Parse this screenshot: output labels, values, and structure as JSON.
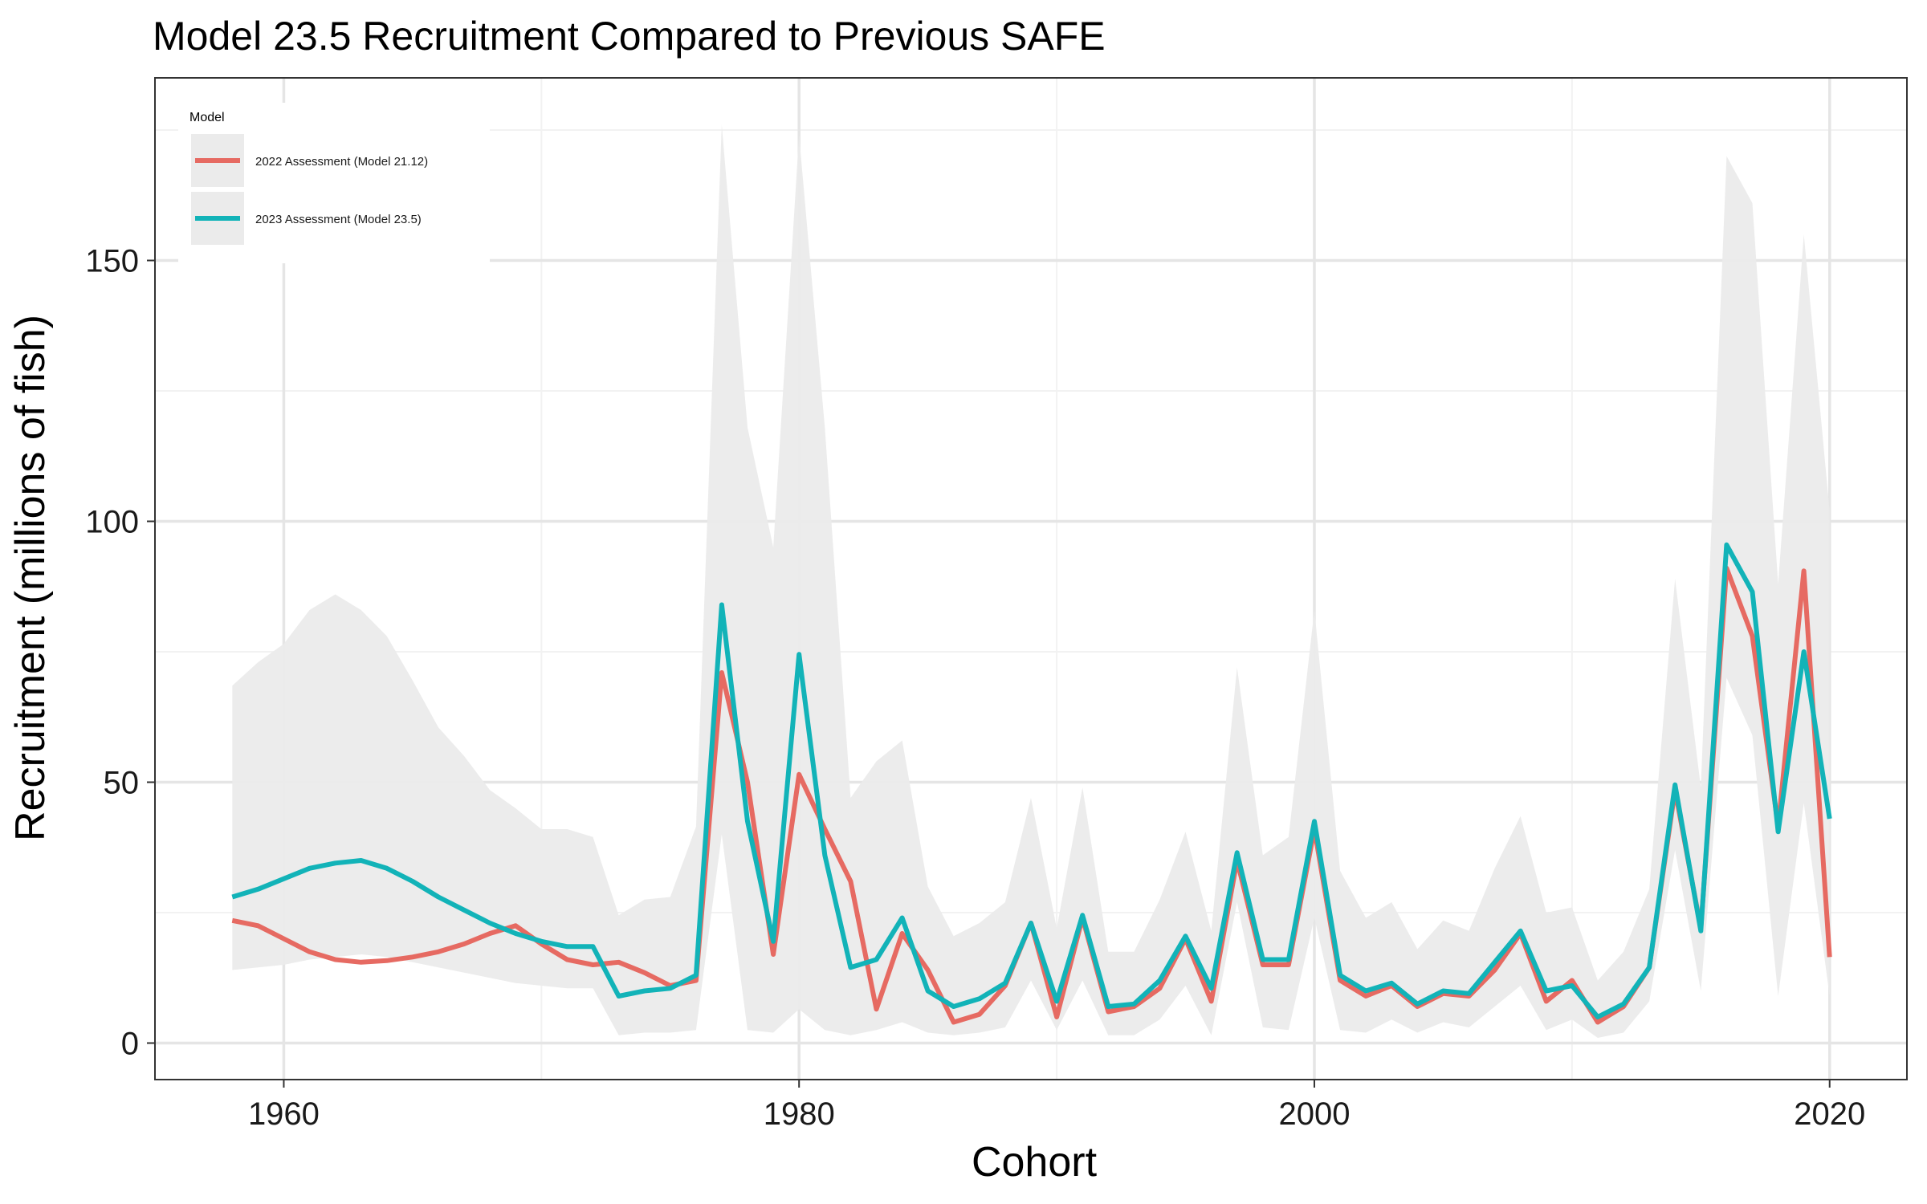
{
  "chart_data": {
    "type": "line",
    "title": "Model 23.5 Recruitment Compared to Previous SAFE",
    "xlabel": "Cohort",
    "ylabel": "Recruitment (millions of fish)",
    "xlim": [
      1955,
      2023
    ],
    "ylim": [
      -7,
      185
    ],
    "x_ticks": [
      "1960",
      "1980",
      "2000",
      "2020"
    ],
    "y_ticks": [
      "0",
      "50",
      "100",
      "150"
    ],
    "grid": true,
    "legend": {
      "title": "Model",
      "position": "top-left"
    },
    "x": [
      1958,
      1959,
      1960,
      1961,
      1962,
      1963,
      1964,
      1965,
      1966,
      1967,
      1968,
      1969,
      1970,
      1971,
      1972,
      1973,
      1974,
      1975,
      1976,
      1977,
      1978,
      1979,
      1980,
      1981,
      1982,
      1983,
      1984,
      1985,
      1986,
      1987,
      1988,
      1989,
      1990,
      1991,
      1992,
      1993,
      1994,
      1995,
      1996,
      1997,
      1998,
      1999,
      2000,
      2001,
      2002,
      2003,
      2004,
      2005,
      2006,
      2007,
      2008,
      2009,
      2010,
      2011,
      2012,
      2013,
      2014,
      2015,
      2016,
      2017,
      2018,
      2019,
      2020
    ],
    "series": [
      {
        "name": "2022 Assessment (Model 21.12)",
        "color": "#E66A62",
        "values": [
          23.5,
          22.5,
          20,
          17.5,
          16,
          15.5,
          15.8,
          16.5,
          17.5,
          19,
          21,
          22.5,
          19,
          16,
          15,
          15.5,
          13.5,
          11,
          12,
          71,
          50,
          17,
          51.5,
          41,
          31,
          6.5,
          21,
          14,
          4,
          5.5,
          11,
          23,
          5,
          24,
          6,
          7,
          10.5,
          20,
          8,
          35,
          15,
          15,
          41,
          12,
          9,
          11,
          7,
          9.5,
          9,
          14,
          21,
          8,
          12,
          4,
          7,
          14.5,
          48.5,
          22,
          91,
          78,
          41.5,
          90.5,
          16.5
        ]
      },
      {
        "name": "2023 Assessment (Model 23.5)",
        "color": "#12B3B8",
        "values": [
          28,
          29.5,
          31.5,
          33.5,
          34.5,
          35,
          33.5,
          31,
          28,
          25.5,
          23,
          21,
          19.5,
          18.5,
          18.5,
          9,
          10,
          10.5,
          13,
          84,
          42.5,
          19.5,
          74.5,
          36,
          14.5,
          16,
          24,
          10,
          7,
          8.5,
          11.5,
          23,
          8,
          24.5,
          7,
          7.5,
          12,
          20.5,
          10.5,
          36.5,
          16,
          16,
          42.5,
          13,
          10,
          11.5,
          7.5,
          10,
          9.5,
          15.5,
          21.5,
          10,
          11,
          5,
          7.5,
          14.5,
          49.5,
          21.5,
          95.5,
          86.5,
          40.5,
          75,
          43
        ]
      }
    ],
    "ribbon": {
      "upper": [
        68.5,
        73,
        76.5,
        83,
        86,
        83,
        78,
        69.5,
        60.5,
        55,
        48.5,
        45,
        41,
        41,
        39.5,
        24.5,
        27.5,
        28,
        41.5,
        176,
        118,
        95,
        174,
        118,
        47,
        54,
        58,
        30,
        20.5,
        23,
        27,
        47,
        22,
        49,
        17.5,
        17.5,
        27.5,
        40.5,
        21.5,
        72,
        36,
        39.5,
        83,
        33,
        24,
        27,
        18,
        23.5,
        21.5,
        33.5,
        43.5,
        25,
        26,
        12,
        17.5,
        29.5,
        89,
        49,
        170,
        161,
        88,
        155,
        102
      ],
      "lower": [
        14,
        14.5,
        15,
        16,
        16.5,
        17,
        16.5,
        15.5,
        14.5,
        13.5,
        12.5,
        11.5,
        11,
        10.5,
        10.5,
        1.5,
        2,
        2,
        2.5,
        40,
        2.5,
        2,
        6.5,
        2.5,
        1.5,
        2.5,
        4,
        2,
        1.5,
        2,
        3,
        12,
        2.5,
        12,
        1.5,
        1.5,
        4.5,
        11,
        1.5,
        27,
        3,
        2.5,
        24,
        2.5,
        2,
        4.5,
        2,
        4,
        3,
        7,
        11,
        2.5,
        4.5,
        1,
        2,
        8,
        37,
        10,
        70,
        59,
        9,
        46,
        9
      ],
      "color": "#EBEBEB"
    }
  }
}
